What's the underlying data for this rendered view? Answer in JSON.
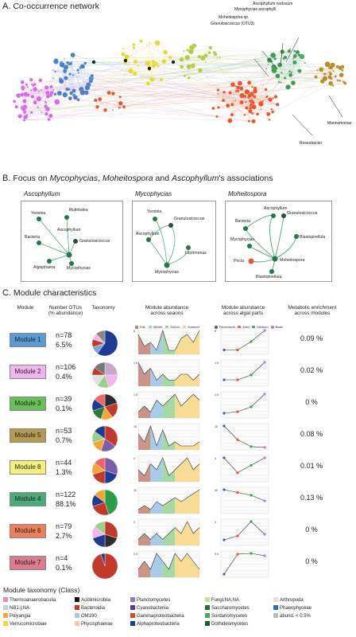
{
  "sectionA": {
    "letter": "A.",
    "title": "Co-occurrence network"
  },
  "network_labels": [
    "Ascophyllum nodosum",
    "Mycophycias ascophylli",
    "Moheitospora sp.",
    "Granulosicoccus (OTU3)",
    "Marinomonas",
    "Roseobacter"
  ],
  "sectionB": {
    "letter": "B.",
    "title_pre": "Focus on ",
    "t1": "Mycophycias",
    "sep1": ", ",
    "t2": "Moheitospora",
    "sep2": " and ",
    "t3": "Ascophyllum",
    "title_post": "'s associations"
  },
  "panels": [
    {
      "title": "Ascophyllum",
      "nodes": [
        "Yersinia",
        "Rubritalea",
        "Ascophyllum",
        "Bacteria",
        "Granulosicoccus",
        "Algisphaera",
        "Mycophycias"
      ]
    },
    {
      "title": "Mycophycias",
      "nodes": [
        "Yersinia",
        "Granulosicoccus",
        "Ascophyllum",
        "Litorimonas",
        "Mycophycias"
      ]
    },
    {
      "title": "Moheitospora",
      "nodes": [
        "Ascophyllum",
        "Granulosicoccus",
        "Bacteria",
        "Mycophycias",
        "Blastopirellula",
        "Pricia",
        "Moheitospora",
        "Blastopirellula"
      ]
    }
  ],
  "sectionC": {
    "letter": "C.",
    "title": "Module characteristics"
  },
  "headers": {
    "module": "Module",
    "otus": "Number OTUs\n(% abundance)",
    "taxonomy": "Taxonomy",
    "seasons": "Module abundance\nacross seaons",
    "algal": "Module abundance\nacross algal parts",
    "metabolic": "Metabolic enrichment\nacross modules"
  },
  "season_legend": [
    "Fall",
    "Winter",
    "Spring",
    "Summer"
  ],
  "algal_legend": [
    "Receptacle",
    "Apex",
    "Medium",
    "Base"
  ],
  "modules": [
    {
      "label": "Module 1",
      "color": "#5b9bd5",
      "n": "n=78",
      "pct": "6.5%",
      "enrich": "0.09 %",
      "ymax": "8",
      "season": [
        5,
        2,
        3,
        1,
        6,
        1,
        1,
        4,
        5,
        3,
        6
      ],
      "algal": [
        1,
        1,
        4,
        8
      ]
    },
    {
      "label": "Module 2",
      "color": "#f2b6ef",
      "n": "n=106",
      "pct": "0.4%",
      "enrich": "0.02 %",
      "ymax": "1.5",
      "season": [
        4,
        2,
        3,
        1,
        2,
        1,
        1,
        2,
        2,
        1,
        2
      ],
      "algal": [
        0.3,
        0.3,
        0.6,
        1.4
      ]
    },
    {
      "label": "Module 3",
      "color": "#6bbf59",
      "n": "n=39",
      "pct": "0.1%",
      "enrich": "0 %",
      "ymax": "1.5",
      "season": [
        1,
        2,
        1,
        3,
        2,
        3,
        4,
        2,
        3,
        4,
        3
      ],
      "algal": [
        0.2,
        0.3,
        0.6,
        1.4
      ]
    },
    {
      "label": "Module 5",
      "color": "#b59a52",
      "n": "n=53",
      "pct": "0.7%",
      "enrich": "0.08 %",
      "ymax": "15",
      "season": [
        4,
        2,
        6,
        1,
        5,
        1,
        2,
        1,
        1,
        1,
        2
      ],
      "algal": [
        13,
        5,
        1,
        0.5
      ]
    },
    {
      "label": "Module 8",
      "color": "#f5f07a",
      "n": "n=44",
      "pct": "1.3%",
      "enrich": "0.01 %",
      "ymax": "4",
      "season": [
        2,
        1,
        3,
        2,
        4,
        1,
        2,
        3,
        4,
        2,
        3
      ],
      "algal": [
        3,
        1,
        2,
        3
      ]
    },
    {
      "label": "Module 4",
      "color": "#4caa78",
      "n": "n=122",
      "pct": "88.1%",
      "enrich": "0.13 %",
      "ymax": "40",
      "season": [
        1,
        2,
        1,
        3,
        2,
        3,
        4,
        3,
        4,
        5,
        6
      ],
      "algal": [
        40,
        35,
        30,
        20
      ]
    },
    {
      "label": "Module 6",
      "color": "#ef7f5a",
      "n": "n=79",
      "pct": "2.7%",
      "enrich": "0 %",
      "ymax": "3",
      "season": [
        1,
        2,
        1,
        2,
        1,
        2,
        3,
        2,
        4,
        2,
        3
      ],
      "algal": [
        0.5,
        1,
        2.8,
        1.2
      ]
    },
    {
      "label": "Module 7",
      "color": "#e07a8e",
      "n": "n=4",
      "pct": "0.1%",
      "enrich": "0 %",
      "ymax": "0.3",
      "season": [
        1,
        2,
        1,
        3,
        2,
        1,
        3,
        2,
        3,
        2,
        1
      ],
      "algal": [
        0.02,
        0.28,
        0.29,
        0.26
      ]
    }
  ],
  "pies": [
    [
      [
        "#1f3a93",
        60
      ],
      [
        "#7ea7d8",
        10
      ],
      [
        "#c0392b",
        10
      ],
      [
        "#f2b6ef",
        8
      ],
      [
        "#888",
        12
      ]
    ],
    [
      [
        "#c6a9c7",
        25
      ],
      [
        "#f2b6ef",
        20
      ],
      [
        "#9bcf8a",
        15
      ],
      [
        "#e0e0e0",
        15
      ],
      [
        "#c0392b",
        10
      ],
      [
        "#777",
        15
      ]
    ],
    [
      [
        "#2d2d2d",
        20
      ],
      [
        "#c0392b",
        20
      ],
      [
        "#f2a63a",
        15
      ],
      [
        "#2a7a3a",
        15
      ],
      [
        "#1f3a93",
        15
      ],
      [
        "#e66",
        15
      ]
    ],
    [
      [
        "#c0392b",
        35
      ],
      [
        "#7b5ea7",
        20
      ],
      [
        "#f2a63a",
        15
      ],
      [
        "#9bcf8a",
        15
      ],
      [
        "#1f3a93",
        15
      ]
    ],
    [
      [
        "#7b5ea7",
        30
      ],
      [
        "#1f3a93",
        20
      ],
      [
        "#c0392b",
        20
      ],
      [
        "#f2a63a",
        15
      ],
      [
        "#e66",
        15
      ]
    ],
    [
      [
        "#2a9d4a",
        45
      ],
      [
        "#c0392b",
        25
      ],
      [
        "#1f3a93",
        15
      ],
      [
        "#f2a63a",
        15
      ]
    ],
    [
      [
        "#c0392b",
        30
      ],
      [
        "#2d2d2d",
        20
      ],
      [
        "#1f3a93",
        20
      ],
      [
        "#f2b6ef",
        15
      ],
      [
        "#9bcf8a",
        15
      ]
    ],
    [
      [
        "#c0392b",
        95
      ],
      [
        "#1f3a93",
        5
      ]
    ]
  ],
  "legend_title": "Module taxonomy (Class)",
  "legend": [
    {
      "label": "Thermoanaerobaculia",
      "color": "#f08cb0"
    },
    {
      "label": "Acidimicrobiia",
      "color": "#111111"
    },
    {
      "label": "Planctomycetes",
      "color": "#8c7bbd"
    },
    {
      "label": "Fungi;NA;NA",
      "color": "#b9e3a4"
    },
    {
      "label": "Arthropoda",
      "color": "#f8d4dc"
    },
    {
      "label": "NB1-j;NA",
      "color": "#c7cbe8"
    },
    {
      "label": "Bacteroidia",
      "color": "#c0392b"
    },
    {
      "label": "Cyanobacteriia",
      "color": "#5f3b8f"
    },
    {
      "label": "Saccharomycetes",
      "color": "#2e6b3a"
    },
    {
      "label": "Phaeophyceae",
      "color": "#2f6fb5"
    },
    {
      "label": "Polyangia",
      "color": "#f2a63a"
    },
    {
      "label": "OM190",
      "color": "#a8c5e8"
    },
    {
      "label": "Gammaproteobacteria",
      "color": "#c9511f"
    },
    {
      "label": "Sordariomycetes",
      "color": "#49a85a"
    },
    {
      "label": "abund. < 0.5%",
      "color": "#bbbbbb"
    },
    {
      "label": "Verrucomicrobiae",
      "color": "#f7d240"
    },
    {
      "label": "Phycisphaerae",
      "color": "#f8c6a8"
    },
    {
      "label": "Alphaproteobacteria",
      "color": "#1f3a93"
    },
    {
      "label": "Dothideomycetes",
      "color": "#1e5a2a"
    }
  ]
}
